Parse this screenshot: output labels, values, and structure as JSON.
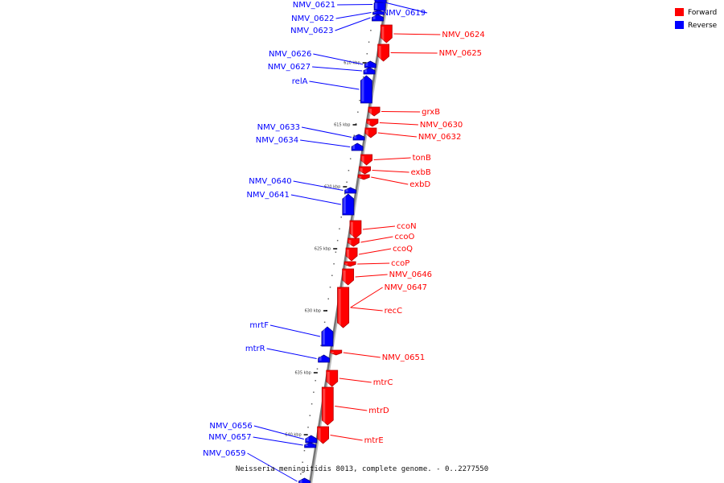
{
  "legend": [
    {
      "label": "Forward",
      "color": "#ff0000"
    },
    {
      "label": "Reverse",
      "color": "#0000ff"
    }
  ],
  "footer": "Neisseria meningitidis 8013, complete genome. - 0..2277550",
  "ticks": [
    "610 kbp",
    "615 kbp",
    "620 kbp",
    "625 kbp",
    "630 kbp",
    "635 kbp",
    "640 kbp"
  ],
  "genes": [
    {
      "name": "NMV_0621",
      "strand": "reverse"
    },
    {
      "name": "NMV_0622",
      "strand": "reverse"
    },
    {
      "name": "NMV_0623",
      "strand": "reverse"
    },
    {
      "name": "NMV_0619",
      "strand": "reverse"
    },
    {
      "name": "NMV_0624",
      "strand": "forward"
    },
    {
      "name": "NMV_0625",
      "strand": "forward"
    },
    {
      "name": "NMV_0626",
      "strand": "reverse"
    },
    {
      "name": "NMV_0627",
      "strand": "reverse"
    },
    {
      "name": "relA",
      "strand": "reverse"
    },
    {
      "name": "grxB",
      "strand": "forward"
    },
    {
      "name": "NMV_0630",
      "strand": "forward"
    },
    {
      "name": "NMV_0632",
      "strand": "forward"
    },
    {
      "name": "NMV_0633",
      "strand": "reverse"
    },
    {
      "name": "NMV_0634",
      "strand": "reverse"
    },
    {
      "name": "tonB",
      "strand": "forward"
    },
    {
      "name": "exbB",
      "strand": "forward"
    },
    {
      "name": "exbD",
      "strand": "forward"
    },
    {
      "name": "NMV_0640",
      "strand": "reverse"
    },
    {
      "name": "NMV_0641",
      "strand": "reverse"
    },
    {
      "name": "ccoN",
      "strand": "forward"
    },
    {
      "name": "ccoO",
      "strand": "forward"
    },
    {
      "name": "ccoQ",
      "strand": "forward"
    },
    {
      "name": "ccoP",
      "strand": "forward"
    },
    {
      "name": "NMV_0646",
      "strand": "forward"
    },
    {
      "name": "NMV_0647",
      "strand": "forward"
    },
    {
      "name": "recC",
      "strand": "forward"
    },
    {
      "name": "mrtF",
      "strand": "reverse"
    },
    {
      "name": "mtrR",
      "strand": "reverse"
    },
    {
      "name": "NMV_0651",
      "strand": "forward"
    },
    {
      "name": "mtrC",
      "strand": "forward"
    },
    {
      "name": "mtrD",
      "strand": "forward"
    },
    {
      "name": "mtrE",
      "strand": "forward"
    },
    {
      "name": "NMV_0656",
      "strand": "reverse"
    },
    {
      "name": "NMV_0657",
      "strand": "reverse"
    },
    {
      "name": "NMV_0659",
      "strand": "reverse"
    }
  ]
}
